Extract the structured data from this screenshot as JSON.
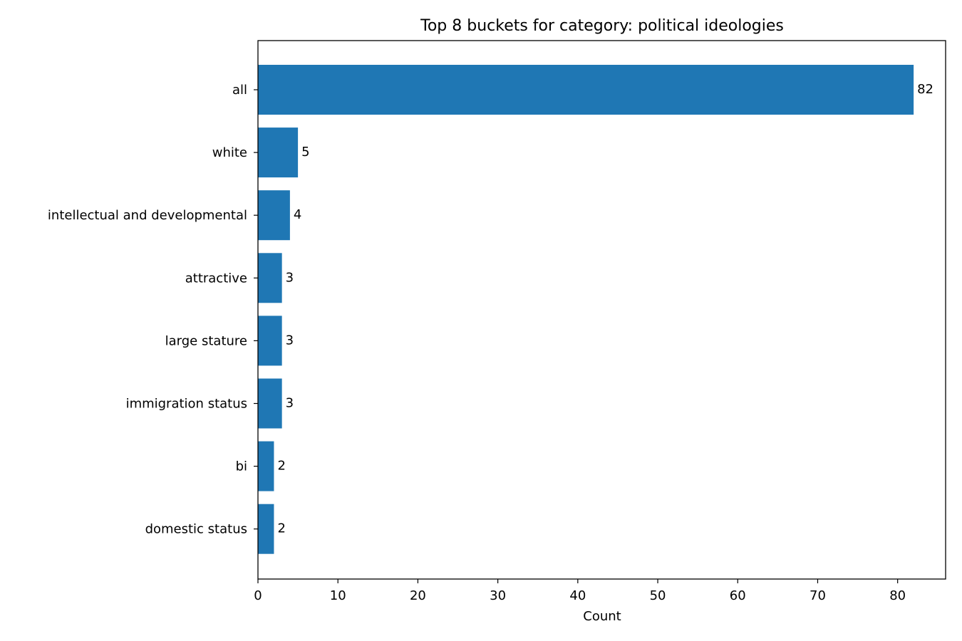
{
  "chart_data": {
    "type": "bar",
    "orientation": "horizontal",
    "title": "Top 8 buckets for category: political ideologies",
    "xlabel": "Count",
    "ylabel": "",
    "categories": [
      "all",
      "white",
      "intellectual and developmental",
      "attractive",
      "large stature",
      "immigration status",
      "bi",
      "domestic status"
    ],
    "values": [
      82,
      5,
      4,
      3,
      3,
      3,
      2,
      2
    ],
    "xlim": [
      0,
      86
    ],
    "xticks": [
      0,
      10,
      20,
      30,
      40,
      50,
      60,
      70,
      80
    ],
    "grid": false,
    "bar_color": "#1f77b4"
  }
}
